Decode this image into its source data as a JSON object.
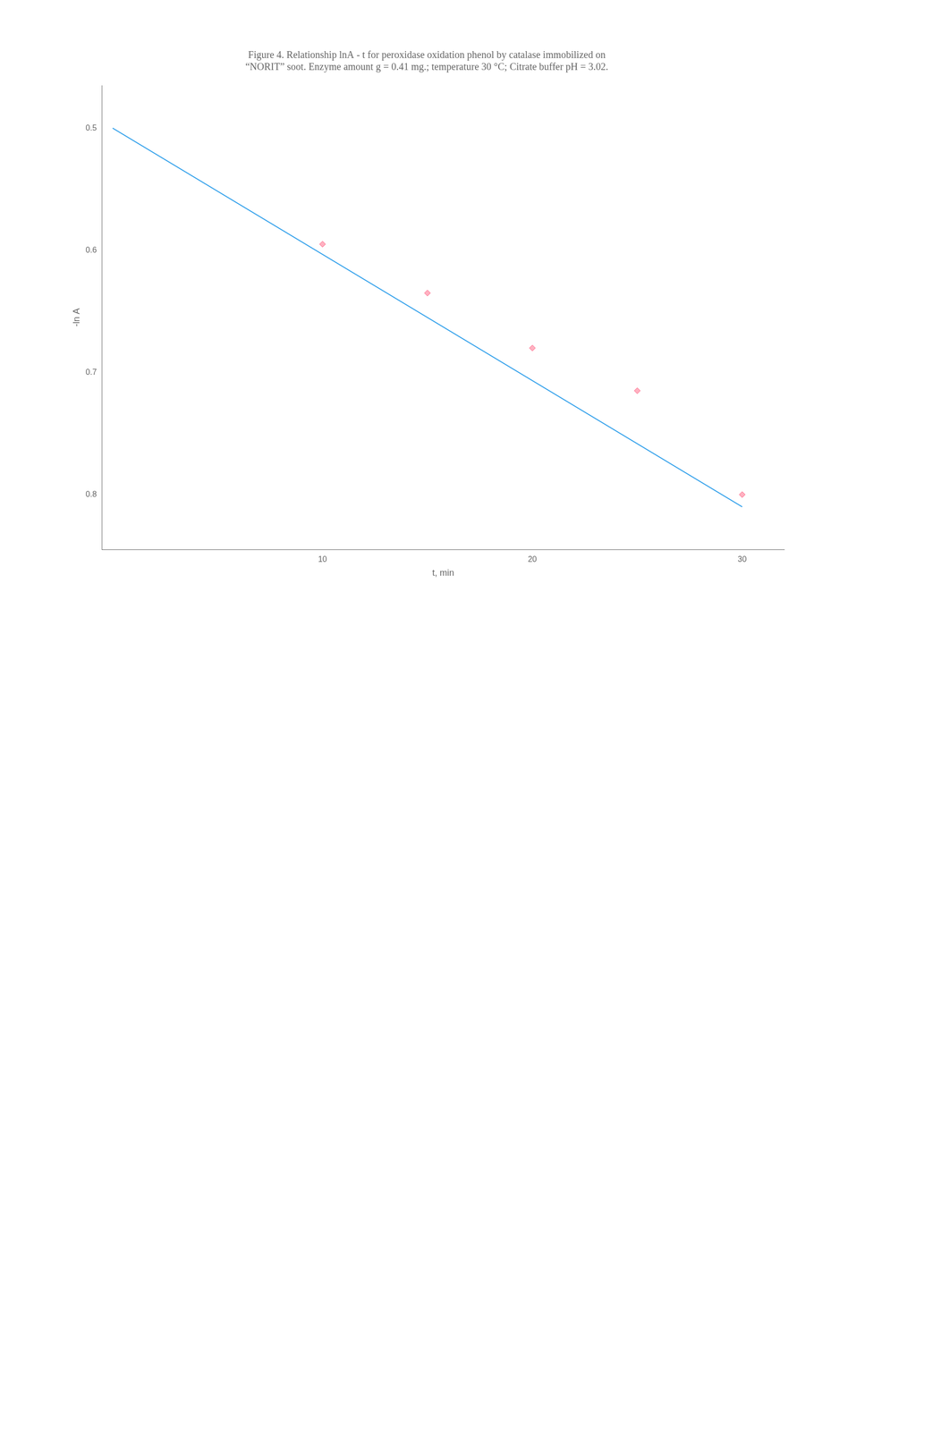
{
  "chart_data": {
    "type": "scatter",
    "title": "Figure 4. Relationship lnA - t for peroxidase oxidation phenol by catalase immobilized on\n“NORIT” soot. Enzyme amount g = 0.41 mg.; temperature 30 °C; Citrate buffer pH = 3.02.",
    "x_label": "t, min",
    "y_label": "-ln A",
    "series": [
      {
        "type": "line",
        "line_style": "solid",
        "x": [
          0,
          30
        ],
        "values": [
          0.5,
          0.81
        ]
      },
      {
        "type": "scatter",
        "marker": "diamond",
        "x": [
          10,
          15,
          20,
          25,
          30
        ],
        "values": [
          0.595,
          0.635,
          0.68,
          0.715,
          0.8
        ]
      }
    ],
    "xlim": [
      -0.5,
      32
    ],
    "xticks": [
      10,
      20,
      30
    ],
    "ylim": [
      0.845,
      0.465
    ],
    "yticks": [
      0.5,
      0.6,
      0.7,
      0.8
    ],
    "grid": false
  }
}
